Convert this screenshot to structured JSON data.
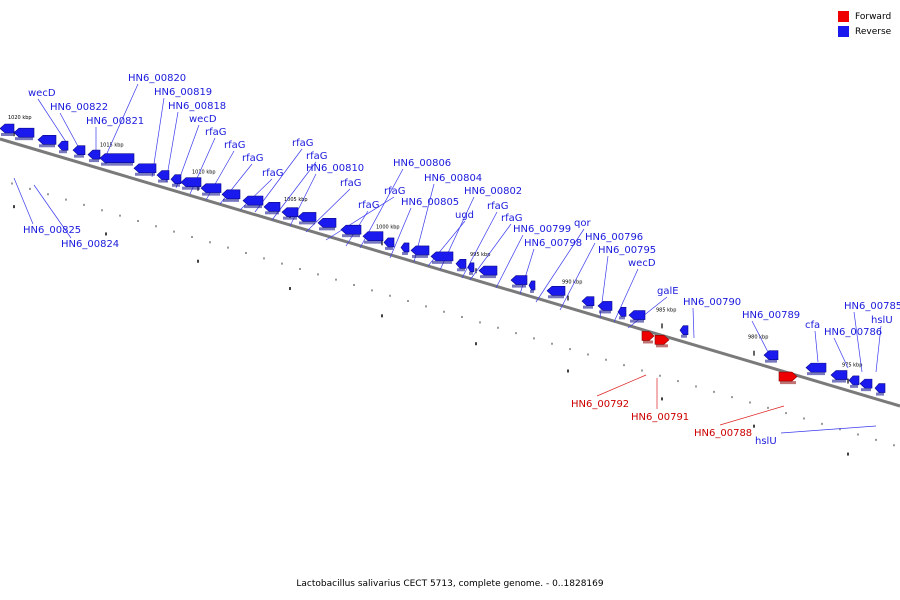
{
  "legend": {
    "forward": {
      "label": "Forward",
      "color": "#ee0000"
    },
    "reverse": {
      "label": "Reverse",
      "color": "#1a1aee"
    }
  },
  "caption": "Lactobacillus salivarius CECT 5713, complete genome. - 0..1828169",
  "scale_labels": [
    "1020 kbp",
    "1015 kbp",
    "1010 kbp",
    "1005 kbp",
    "1000 kbp",
    "995 kbp",
    "990 kbp",
    "985 kbp",
    "980 kbp",
    "975 kbp"
  ],
  "reverse_labels": [
    "wecD",
    "HN6_00822",
    "HN6_00821",
    "HN6_00820",
    "HN6_00819",
    "HN6_00818",
    "wecD",
    "rfaG",
    "rfaG",
    "rfaG",
    "rfaG",
    "rfaG",
    "rfaG",
    "HN6_00810",
    "rfaG",
    "rfaG",
    "rfaG",
    "HN6_00806",
    "HN6_00805",
    "HN6_00804",
    "HN6_00802",
    "ugd",
    "rfaG",
    "rfaG",
    "HN6_00799",
    "HN6_00798",
    "qor",
    "HN6_00796",
    "HN6_00795",
    "wecD",
    "galE",
    "HN6_00790",
    "HN6_00789",
    "cfa",
    "HN6_00786",
    "HN6_00785",
    "hslU",
    "HN6_00825",
    "HN6_00824"
  ],
  "forward_labels": [
    "HN6_00792",
    "HN6_00791",
    "HN6_00788",
    "hslU"
  ]
}
